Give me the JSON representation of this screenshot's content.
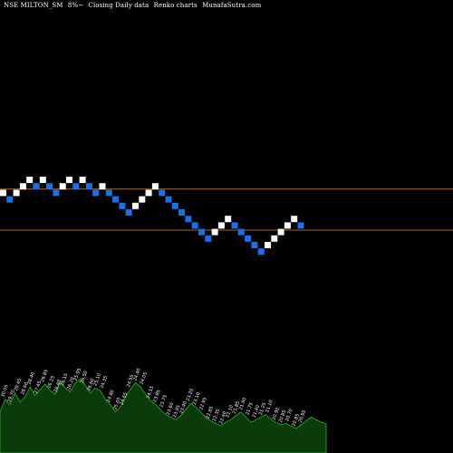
{
  "header": {
    "symbol": "NSE MILTON_SM",
    "change": "8%~",
    "chart_kind": "Closing Daily data",
    "chart_style": "Renko charts",
    "site": "MunafaSutra.com"
  },
  "colors": {
    "background": "#000000",
    "up_brick": "#ffffff",
    "down_brick": "#1e6fe6",
    "level_line": "#a0642a",
    "volume_fill": "#0b3a0b",
    "volume_outline": "#2fb12f",
    "label_text": "#ffffff"
  },
  "chart_data": {
    "type": "renko",
    "brick_size": 1,
    "bricks": [
      {
        "dir": "up",
        "level": 10
      },
      {
        "dir": "down",
        "level": 9
      },
      {
        "dir": "up",
        "level": 10
      },
      {
        "dir": "up",
        "level": 11
      },
      {
        "dir": "up",
        "level": 12
      },
      {
        "dir": "down",
        "level": 11
      },
      {
        "dir": "up",
        "level": 12
      },
      {
        "dir": "down",
        "level": 11
      },
      {
        "dir": "down",
        "level": 10
      },
      {
        "dir": "up",
        "level": 11
      },
      {
        "dir": "up",
        "level": 12
      },
      {
        "dir": "down",
        "level": 11
      },
      {
        "dir": "up",
        "level": 12
      },
      {
        "dir": "down",
        "level": 11
      },
      {
        "dir": "down",
        "level": 10
      },
      {
        "dir": "up",
        "level": 11
      },
      {
        "dir": "down",
        "level": 10
      },
      {
        "dir": "down",
        "level": 9
      },
      {
        "dir": "down",
        "level": 8
      },
      {
        "dir": "down",
        "level": 7
      },
      {
        "dir": "up",
        "level": 8
      },
      {
        "dir": "up",
        "level": 9
      },
      {
        "dir": "up",
        "level": 10
      },
      {
        "dir": "up",
        "level": 11
      },
      {
        "dir": "down",
        "level": 10
      },
      {
        "dir": "down",
        "level": 9
      },
      {
        "dir": "down",
        "level": 8
      },
      {
        "dir": "down",
        "level": 7
      },
      {
        "dir": "down",
        "level": 6
      },
      {
        "dir": "down",
        "level": 5
      },
      {
        "dir": "down",
        "level": 4
      },
      {
        "dir": "down",
        "level": 3
      },
      {
        "dir": "up",
        "level": 4
      },
      {
        "dir": "up",
        "level": 5
      },
      {
        "dir": "up",
        "level": 6
      },
      {
        "dir": "down",
        "level": 5
      },
      {
        "dir": "down",
        "level": 4
      },
      {
        "dir": "down",
        "level": 3
      },
      {
        "dir": "down",
        "level": 2
      },
      {
        "dir": "down",
        "level": 1
      },
      {
        "dir": "up",
        "level": 2
      },
      {
        "dir": "up",
        "level": 3
      },
      {
        "dir": "up",
        "level": 4
      },
      {
        "dir": "up",
        "level": 5
      },
      {
        "dir": "up",
        "level": 6
      },
      {
        "dir": "down",
        "level": 5
      }
    ],
    "level_lines": [
      10.1,
      3.8
    ],
    "volume_profile": [
      18,
      28,
      24,
      33,
      26,
      30,
      38,
      31,
      36,
      40,
      35,
      32,
      42,
      37,
      34,
      41,
      44,
      39,
      33,
      37,
      35,
      28,
      24,
      18,
      22,
      30,
      36,
      41,
      38,
      32,
      27,
      24,
      20,
      16,
      14,
      12,
      15,
      20,
      25,
      22,
      18,
      14,
      11,
      9,
      7,
      10,
      12,
      15,
      18,
      14,
      10,
      12,
      14,
      16,
      12,
      10,
      8,
      9,
      7,
      5,
      8,
      11,
      14,
      12,
      10,
      9
    ],
    "volume_labels": [
      "30.05",
      "29.70",
      "29.45",
      "28.60",
      "28.40",
      "27.45",
      "26.85",
      "26.25",
      "26.40",
      "26.15",
      "26.20",
      "25.95",
      "26.50",
      "26.60",
      "25.10",
      "24.35",
      "24.80",
      "25.05",
      "24.65",
      "24.55",
      "24.40",
      "24.05",
      "24.15",
      "23.85",
      "23.75",
      "23.60",
      "23.95",
      "23.40",
      "23.20",
      "23.10",
      "22.95",
      "22.85",
      "22.35",
      "22.40",
      "22.10",
      "21.85",
      "21.90",
      "21.75",
      "21.40",
      "21.25",
      "21.10",
      "20.90",
      "20.85",
      "20.70",
      "20.85",
      "20.95"
    ]
  }
}
